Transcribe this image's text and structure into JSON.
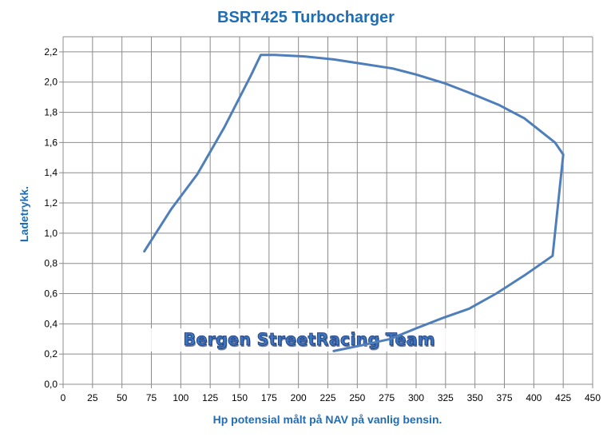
{
  "chart_data": {
    "type": "line",
    "title": "BSRT425 Turbocharger",
    "xlabel": "Hp potensial målt på NAV på vanlig bensin.",
    "ylabel": "Ladetrykk.",
    "xlim": [
      0,
      450
    ],
    "ylim": [
      0,
      2.3
    ],
    "x_ticks": [
      "0",
      "25",
      "50",
      "75",
      "100",
      "125",
      "150",
      "175",
      "200",
      "225",
      "250",
      "275",
      "300",
      "325",
      "350",
      "375",
      "400",
      "425",
      "450"
    ],
    "y_ticks": [
      "0,0",
      "0,2",
      "0,4",
      "0,6",
      "0,8",
      "1,0",
      "1,2",
      "1,4",
      "1,6",
      "1,8",
      "2,0",
      "2,2"
    ],
    "grid": true,
    "watermark": "Bergen StreetRacing Team",
    "colors": {
      "line": "#4f7fba",
      "title": "#1f6db5",
      "grid": "#8c8c8c"
    },
    "series": [
      {
        "points": [
          [
            69,
            0.88
          ],
          [
            92,
            1.16
          ],
          [
            114,
            1.39
          ],
          [
            137,
            1.7
          ],
          [
            160,
            2.05
          ],
          [
            168,
            2.18
          ],
          [
            180,
            2.18
          ],
          [
            205,
            2.17
          ],
          [
            230,
            2.15
          ],
          [
            255,
            2.12
          ],
          [
            280,
            2.09
          ],
          [
            300,
            2.05
          ],
          [
            325,
            1.99
          ],
          [
            345,
            1.93
          ],
          [
            370,
            1.85
          ],
          [
            392,
            1.76
          ],
          [
            418,
            1.6
          ],
          [
            425,
            1.52
          ],
          [
            416,
            0.85
          ],
          [
            392,
            0.72
          ],
          [
            368,
            0.6
          ],
          [
            345,
            0.5
          ],
          [
            323,
            0.44
          ],
          [
            300,
            0.37
          ],
          [
            278,
            0.3
          ],
          [
            255,
            0.26
          ],
          [
            230,
            0.22
          ]
        ]
      }
    ]
  }
}
